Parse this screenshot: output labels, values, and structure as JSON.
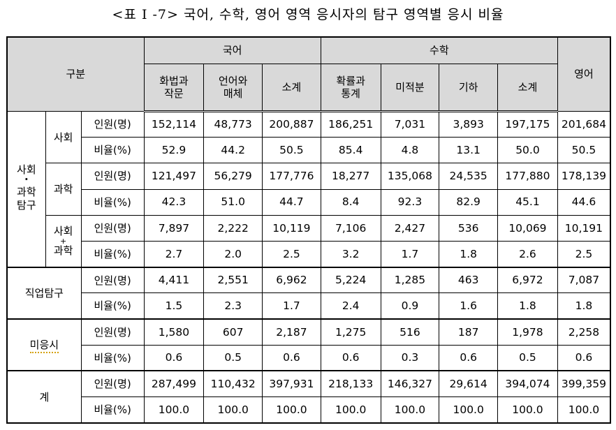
{
  "title": "<표 I -7> 국어, 수학, 영어 영역 응시자의 탐구 영역별 응시 비율",
  "header": {
    "category": "구분",
    "korean": "국어",
    "math": "수학",
    "english": "영어",
    "korean_sub": [
      "화법과\n작문",
      "언어와\n매체",
      "소계"
    ],
    "math_sub": [
      "확률과\n통계",
      "미적분",
      "기하",
      "소계"
    ]
  },
  "labels": {
    "count": "인원(명)",
    "ratio": "비율(%)",
    "soc_sci_group_top": "사회",
    "soc_sci_group_dot": "·",
    "soc_sci_group_bottom1": "과학",
    "soc_sci_group_bottom2": "탐구",
    "social": "사회",
    "science": "과학",
    "both_top": "사회",
    "both_plus": "+",
    "both_bottom": "과학",
    "vocational": "직업탐구",
    "none": "미응시",
    "total": "계"
  },
  "rows": {
    "social_count": [
      "152,114",
      "48,773",
      "200,887",
      "186,251",
      "7,031",
      "3,893",
      "197,175",
      "201,684"
    ],
    "social_ratio": [
      "52.9",
      "44.2",
      "50.5",
      "85.4",
      "4.8",
      "13.1",
      "50.0",
      "50.5"
    ],
    "science_count": [
      "121,497",
      "56,279",
      "177,776",
      "18,277",
      "135,068",
      "24,535",
      "177,880",
      "178,139"
    ],
    "science_ratio": [
      "42.3",
      "51.0",
      "44.7",
      "8.4",
      "92.3",
      "82.9",
      "45.1",
      "44.6"
    ],
    "both_count": [
      "7,897",
      "2,222",
      "10,119",
      "7,106",
      "2,427",
      "536",
      "10,069",
      "10,191"
    ],
    "both_ratio": [
      "2.7",
      "2.0",
      "2.5",
      "3.2",
      "1.7",
      "1.8",
      "2.6",
      "2.5"
    ],
    "vocational_count": [
      "4,411",
      "2,551",
      "6,962",
      "5,224",
      "1,285",
      "463",
      "6,972",
      "7,087"
    ],
    "vocational_ratio": [
      "1.5",
      "2.3",
      "1.7",
      "2.4",
      "0.9",
      "1.6",
      "1.8",
      "1.8"
    ],
    "none_count": [
      "1,580",
      "607",
      "2,187",
      "1,275",
      "516",
      "187",
      "1,978",
      "2,258"
    ],
    "none_ratio": [
      "0.6",
      "0.5",
      "0.6",
      "0.6",
      "0.3",
      "0.6",
      "0.5",
      "0.6"
    ],
    "total_count": [
      "287,499",
      "110,432",
      "397,931",
      "218,133",
      "146,327",
      "29,614",
      "394,074",
      "399,359"
    ],
    "total_ratio": [
      "100.0",
      "100.0",
      "100.0",
      "100.0",
      "100.0",
      "100.0",
      "100.0",
      "100.0"
    ]
  }
}
